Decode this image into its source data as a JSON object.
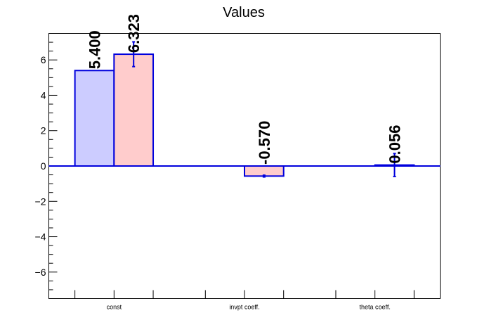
{
  "chart_data": {
    "type": "bar",
    "title": "Values",
    "categories": [
      "const",
      "invpt coeff.",
      "theta coeff."
    ],
    "series": [
      {
        "values": [
          5.4,
          null,
          null
        ],
        "errors": [
          0,
          null,
          null
        ],
        "fill": "#ccccff",
        "stroke": "#0000dd"
      },
      {
        "values": [
          6.323,
          -0.57,
          0.056
        ],
        "errors": [
          0.7,
          0.05,
          0.65
        ],
        "fill": "#ffcccc",
        "stroke": "#0000dd"
      }
    ],
    "value_labels": [
      [
        "5.400",
        null,
        null
      ],
      [
        "6.323",
        "-0.570",
        "0.056"
      ]
    ],
    "ylim": [
      -7.5,
      7.5
    ],
    "yticks": [
      -6,
      -4,
      -2,
      0,
      2,
      4,
      6
    ],
    "ytick_labels": [
      "−6",
      "−4",
      "−2",
      "0",
      "2",
      "4",
      "6"
    ],
    "zero_line_color": "#0000dd",
    "grid": false,
    "legend": "none"
  }
}
